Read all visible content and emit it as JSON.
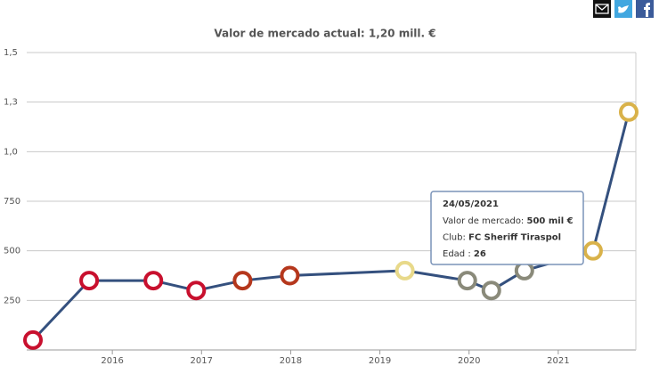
{
  "chart_data": {
    "type": "line",
    "title": "Valor de mercado actual: 1,20 mill. €",
    "x": [
      2015.11,
      2015.74,
      2016.46,
      2016.94,
      2017.46,
      2017.99,
      2019.28,
      2019.98,
      2020.25,
      2020.62,
      2021.39,
      2021.79
    ],
    "series": [
      {
        "color": "#34507e",
        "values": [
          50,
          350,
          350,
          300,
          350,
          375,
          400,
          350,
          300,
          400,
          500,
          1200
        ],
        "marker_colors": [
          "#c8102e",
          "#c8102e",
          "#c8102e",
          "#c8102e",
          "#b5371c",
          "#b5371c",
          "#e8d98a",
          "#8a8a7a",
          "#8a8a7a",
          "#8a8a7a",
          "#d9b24a",
          "#d9b24a"
        ]
      }
    ],
    "xlim": [
      2015.04,
      2021.87
    ],
    "xticks": [
      2016,
      2017,
      2018,
      2019,
      2020,
      2021
    ],
    "ylim": [
      0,
      1500
    ],
    "yticks": [
      {
        "value": 1500,
        "label": "1,5"
      },
      {
        "value": 1250,
        "label": "1,3"
      },
      {
        "value": 1000,
        "label": "1,0"
      },
      750,
      500,
      250
    ],
    "grid": true,
    "tooltip": {
      "date": "24/05/2021",
      "rows": [
        {
          "label": "Valor de mercado:",
          "value": "500 mil €"
        },
        {
          "label": "Club:",
          "value": "FC Sheriff Tiraspol"
        },
        {
          "label": "Edad :",
          "value": "26"
        }
      ]
    }
  }
}
